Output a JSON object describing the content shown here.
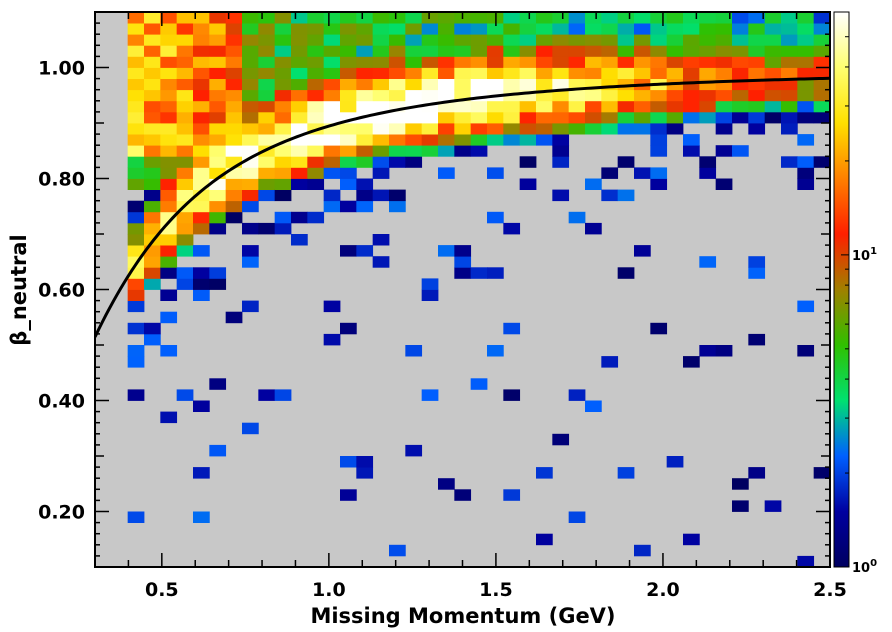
{
  "chart_data": {
    "type": "heatmap",
    "title": "",
    "xlabel": "Missing Momentum (GeV)",
    "ylabel": "β_neutral",
    "xlim": [
      0.3,
      2.5
    ],
    "ylim": [
      0.1,
      1.1
    ],
    "x_ticks": [
      0.5,
      1.0,
      1.5,
      2.0,
      2.5
    ],
    "x_tick_labels": [
      "0.5",
      "1.0",
      "1.5",
      "2.0",
      "2.5"
    ],
    "y_ticks": [
      0.2,
      0.4,
      0.6,
      0.8,
      1.0
    ],
    "y_tick_labels": [
      "0.20",
      "0.40",
      "0.60",
      "0.80",
      "1.00"
    ],
    "bins": {
      "x_count": 45,
      "y_count": 50
    },
    "color_scale": {
      "type": "log",
      "range": [
        1,
        60
      ],
      "ticks": [
        {
          "value": 1,
          "base": "10",
          "exp": "0"
        },
        {
          "value": 10,
          "base": "10",
          "exp": "1"
        }
      ],
      "palette": [
        "#000060",
        "#0000a0",
        "#0060ff",
        "#00e070",
        "#30c000",
        "#a08000",
        "#ff2000",
        "#ff8000",
        "#ffe000",
        "#ffff70",
        "#ffffff"
      ]
    },
    "empty_bin_color": "#c8c8c8",
    "curve": {
      "description": "β = p / sqrt(p² + m²)",
      "mass_gev": 0.5,
      "color": "#000000"
    },
    "density_model": {
      "band_peak_counts": 55,
      "band_width": 0.035,
      "top_left_cluster": {
        "x": [
          0.4,
          0.75
        ],
        "y": [
          0.85,
          1.1
        ],
        "counts": 22
      },
      "upper_region_counts": 3.5,
      "sparse_region_counts": 1.2,
      "sparse_occupancy": 0.06
    }
  }
}
